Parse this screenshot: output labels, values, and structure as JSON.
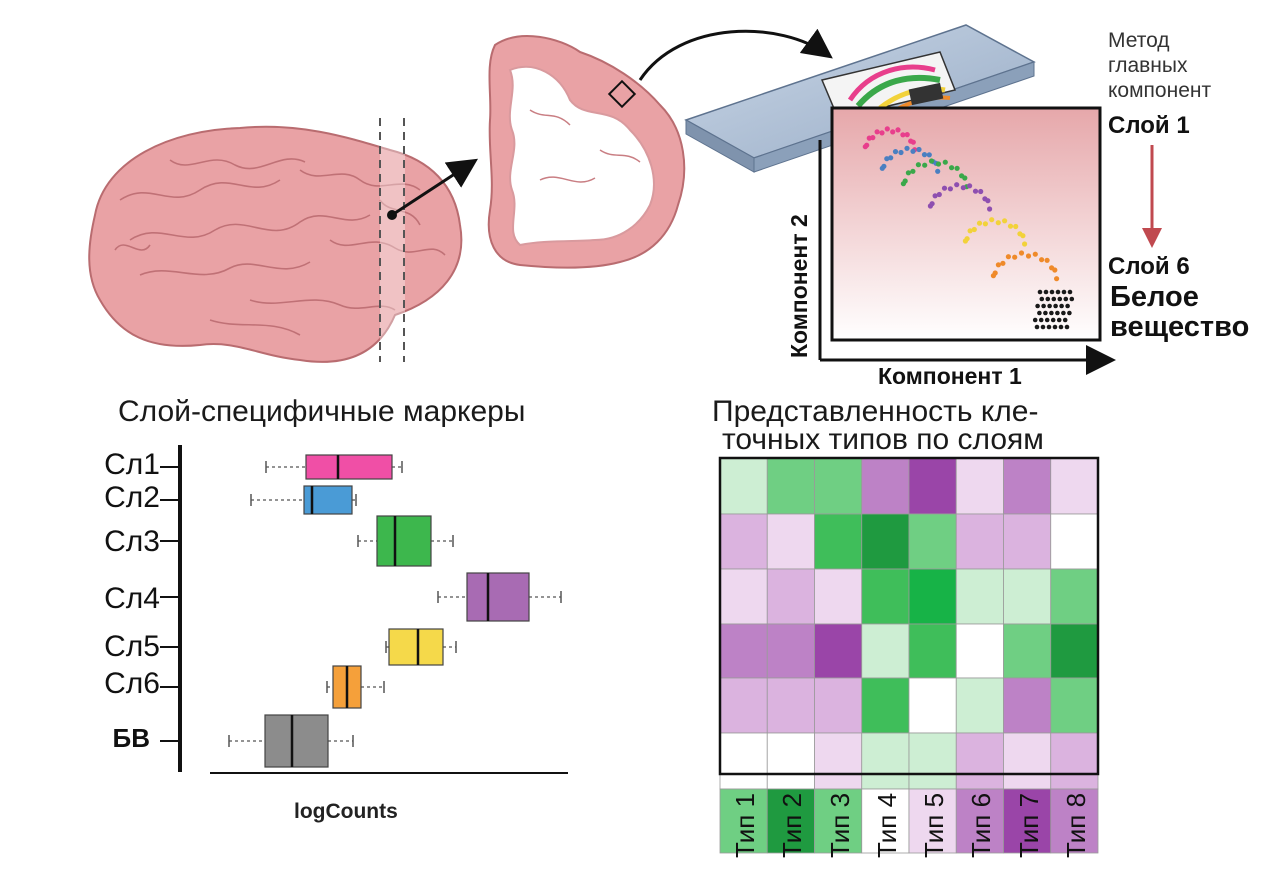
{
  "pca": {
    "method_label": "Метод главных компонент",
    "top_layer": "Слой 1",
    "bottom_layer": "Слой 6",
    "white_matter": "Белое вещество",
    "x_axis": "Компонент 1",
    "y_axis": "Компонент 2",
    "cluster_colors": [
      "#e83e8c",
      "#4a7fc1",
      "#3aa84a",
      "#8e4fb0",
      "#f2d23a",
      "#ef8a2a",
      "#1a1a1a"
    ]
  },
  "boxplot": {
    "title": "Слой-специфичные маркеры",
    "xlabel": "logCounts",
    "rows": [
      {
        "label": "Сл1",
        "color": "#f04fa6"
      },
      {
        "label": "Сл2",
        "color": "#4a9bd6"
      },
      {
        "label": "Сл3",
        "color": "#3db74d"
      },
      {
        "label": "Сл4",
        "color": "#a86bb3"
      },
      {
        "label": "Сл5",
        "color": "#f5d94a"
      },
      {
        "label": "Сл6",
        "color": "#f5a03a"
      },
      {
        "label": "БВ",
        "color": "#8c8c8c"
      }
    ]
  },
  "heatmap": {
    "title_line1": "Представленность кле-",
    "title_line2": "точных типов по слоям",
    "columns": [
      "Тип 1",
      "Тип 2",
      "Тип 3",
      "Тип 4",
      "Тип 5",
      "Тип 6",
      "Тип 7",
      "Тип 8"
    ],
    "colors": [
      [
        "#cdeed3",
        "#6fcf83",
        "#6fcf83",
        "#bd82c6",
        "#9a45a8",
        "#eed8ef",
        "#bd82c6",
        "#eed8ef"
      ],
      [
        "#dbb3df",
        "#eed8ef",
        "#3fbe5a",
        "#1f9a40",
        "#6fcf83",
        "#dbb3df",
        "#dbb3df",
        "#ffffff"
      ],
      [
        "#eed8ef",
        "#dbb3df",
        "#eed8ef",
        "#3fbe5a",
        "#17b347",
        "#cdeed3",
        "#cdeed3",
        "#6fcf83"
      ],
      [
        "#bd82c6",
        "#bd82c6",
        "#9a45a8",
        "#cdeed3",
        "#3fbe5a",
        "#ffffff",
        "#6fcf83",
        "#1f9a40"
      ],
      [
        "#dbb3df",
        "#dbb3df",
        "#dbb3df",
        "#3fbe5a",
        "#ffffff",
        "#cdeed3",
        "#bd82c6",
        "#6fcf83"
      ],
      [
        "#ffffff",
        "#ffffff",
        "#eed8ef",
        "#cdeed3",
        "#cdeed3",
        "#dbb3df",
        "#eed8ef",
        "#dbb3df"
      ],
      [
        "#6fcf83",
        "#1f9a40",
        "#6fcf83",
        "#ffffff",
        "#eed8ef",
        "#bd82c6",
        "#9a45a8",
        "#bd82c6"
      ]
    ]
  }
}
